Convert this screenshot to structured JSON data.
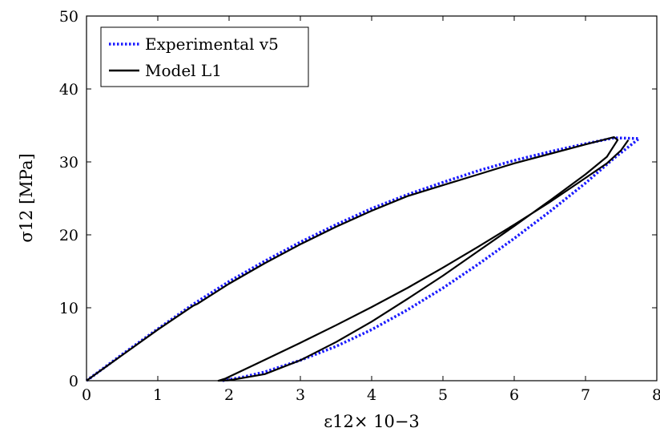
{
  "chart_data": {
    "type": "line",
    "xlabel": "ε12× 10−3",
    "ylabel": "σ12 [MPa]",
    "xlim": [
      0,
      8
    ],
    "ylim": [
      0,
      50
    ],
    "xticks": [
      "0",
      "1",
      "2",
      "3",
      "4",
      "5",
      "6",
      "7",
      "8"
    ],
    "yticks": [
      "0",
      "10",
      "20",
      "30",
      "40",
      "50"
    ],
    "grid": false,
    "legend_position": "top-left",
    "series": [
      {
        "name": "Experimental v5",
        "style": "dotted",
        "color": "#1a1aff",
        "x": [
          0,
          0.5,
          1.0,
          1.5,
          2.0,
          2.5,
          3.0,
          3.5,
          4.0,
          4.5,
          5.0,
          5.5,
          6.0,
          6.5,
          7.0,
          7.4,
          7.75,
          7.4,
          7.0,
          6.5,
          6.0,
          5.5,
          5.0,
          4.5,
          4.0,
          3.5,
          3.0,
          2.5,
          2.2,
          1.9
        ],
        "y": [
          0,
          3.6,
          7.1,
          10.5,
          13.6,
          16.4,
          19.0,
          21.4,
          23.6,
          25.5,
          27.2,
          28.8,
          30.2,
          31.4,
          32.5,
          33.3,
          33.2,
          30.5,
          27.1,
          23.2,
          19.5,
          16.0,
          12.7,
          9.7,
          7.0,
          4.7,
          2.8,
          1.2,
          0.5,
          0
        ]
      },
      {
        "name": "Model L1",
        "style": "solid",
        "color": "#000000",
        "x": [
          0,
          0.5,
          1.0,
          1.5,
          1.55,
          2.0,
          2.5,
          3.0,
          3.5,
          4.0,
          4.5,
          5.0,
          5.5,
          6.0,
          6.5,
          7.0,
          7.4,
          7.45,
          7.3,
          7.0,
          6.5,
          6.0,
          5.5,
          5.0,
          4.5,
          4.0,
          3.5,
          3.0,
          2.5,
          2.0,
          1.85,
          1.95,
          2.4,
          3.0,
          3.5,
          4.0,
          4.5,
          5.0,
          5.5,
          6.0,
          6.5,
          7.0,
          7.3,
          7.5,
          7.6
        ],
        "y": [
          0,
          3.5,
          7.0,
          10.3,
          10.5,
          13.3,
          16.1,
          18.7,
          21.1,
          23.3,
          25.3,
          26.8,
          28.3,
          29.8,
          31.1,
          32.4,
          33.4,
          33.0,
          30.7,
          28.3,
          24.7,
          21.2,
          17.8,
          14.4,
          11.2,
          8.1,
          5.3,
          2.8,
          0.9,
          0.05,
          0,
          0.3,
          2.4,
          5.2,
          7.6,
          10.1,
          12.7,
          15.5,
          18.4,
          21.4,
          24.5,
          27.8,
          29.8,
          31.6,
          33.0
        ]
      }
    ]
  }
}
